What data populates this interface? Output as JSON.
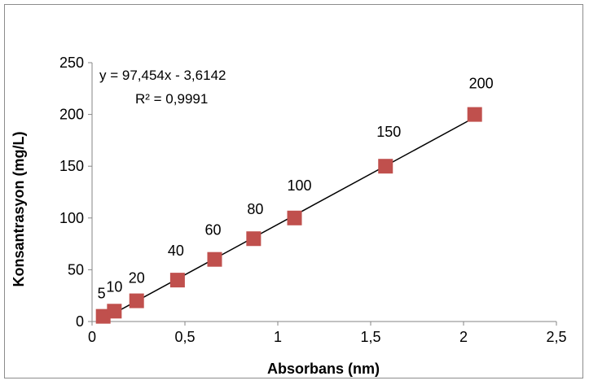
{
  "chart_data": {
    "type": "scatter",
    "xlabel": "Absorbans (nm)",
    "ylabel": "Konsantrasyon (mg/L)",
    "xlim": [
      0,
      2.5
    ],
    "ylim": [
      0,
      250
    ],
    "x_ticks": [
      "0",
      "0,5",
      "1",
      "1,5",
      "2",
      "2,5"
    ],
    "y_ticks": [
      "0",
      "50",
      "100",
      "150",
      "200",
      "250"
    ],
    "grid": false,
    "legend": "none",
    "series": [
      {
        "marker": "square",
        "color": "#c0504d",
        "x": [
          0.06,
          0.12,
          0.24,
          0.46,
          0.66,
          0.87,
          1.09,
          1.58,
          2.06
        ],
        "y": [
          5,
          10,
          20,
          40,
          60,
          80,
          100,
          150,
          200
        ],
        "labels": [
          "5",
          "10",
          "20",
          "40",
          "60",
          "80",
          "100",
          "150",
          "200"
        ]
      }
    ],
    "trendline": {
      "type": "linear",
      "slope": 97.454,
      "intercept": -3.6142,
      "x_range": [
        0.06,
        2.06
      ],
      "color": "#000000",
      "equation": "y = 97,454x - 3,6142",
      "r_squared": "R² = 0,9991"
    }
  }
}
